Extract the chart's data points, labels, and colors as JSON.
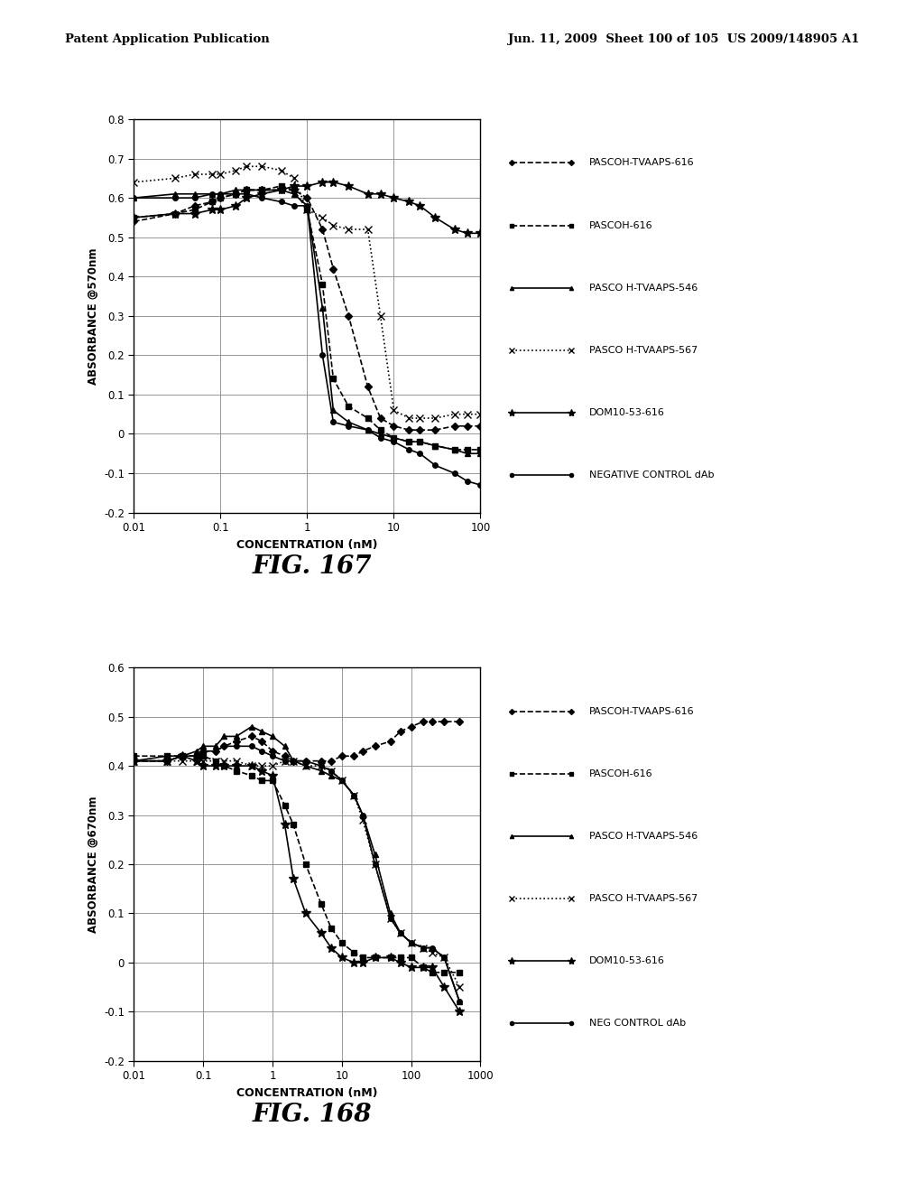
{
  "header_left": "Patent Application Publication",
  "header_right": "Jun. 11, 2009  Sheet 100 of 105  US 2009/148905 A1",
  "fig167_label": "FIG. 167",
  "fig168_label": "FIG. 168",
  "fig1": {
    "ylabel": "ABSORBANCE @570nm",
    "xlabel": "CONCENTRATION (nM)",
    "xlim": [
      0.01,
      100
    ],
    "ylim": [
      -0.2,
      0.8
    ],
    "yticks": [
      -0.2,
      -0.1,
      0,
      0.1,
      0.2,
      0.3,
      0.4,
      0.5,
      0.6,
      0.7,
      0.8
    ],
    "xticks": [
      0.01,
      0.1,
      1,
      10,
      100
    ],
    "xticklabels": [
      "0.01",
      "0.1",
      "1",
      "10",
      "100"
    ],
    "series": [
      {
        "label": "PASCOH-TVAAPS-616",
        "linestyle": "--",
        "marker": "D",
        "markersize": 4,
        "x": [
          0.01,
          0.03,
          0.05,
          0.08,
          0.1,
          0.15,
          0.2,
          0.3,
          0.5,
          0.7,
          1.0,
          1.5,
          2,
          3,
          5,
          7,
          10,
          15,
          20,
          30,
          50,
          70,
          100
        ],
        "y": [
          0.54,
          0.56,
          0.58,
          0.59,
          0.6,
          0.61,
          0.62,
          0.62,
          0.62,
          0.62,
          0.6,
          0.52,
          0.42,
          0.3,
          0.12,
          0.04,
          0.02,
          0.01,
          0.01,
          0.01,
          0.02,
          0.02,
          0.02
        ]
      },
      {
        "label": "PASCOH-616",
        "linestyle": "--",
        "marker": "s",
        "markersize": 4,
        "x": [
          0.01,
          0.03,
          0.05,
          0.08,
          0.1,
          0.15,
          0.2,
          0.3,
          0.5,
          0.7,
          1.0,
          1.5,
          2,
          3,
          5,
          7,
          10,
          15,
          20,
          30,
          50,
          70,
          100
        ],
        "y": [
          0.55,
          0.56,
          0.57,
          0.59,
          0.6,
          0.61,
          0.62,
          0.62,
          0.63,
          0.62,
          0.57,
          0.38,
          0.14,
          0.07,
          0.04,
          0.01,
          -0.01,
          -0.02,
          -0.02,
          -0.03,
          -0.04,
          -0.04,
          -0.04
        ]
      },
      {
        "label": "PASCO H-TVAAPS-546",
        "linestyle": "-",
        "marker": "^",
        "markersize": 4,
        "x": [
          0.01,
          0.03,
          0.05,
          0.08,
          0.1,
          0.15,
          0.2,
          0.3,
          0.5,
          0.7,
          1.0,
          1.5,
          2,
          3,
          5,
          7,
          10,
          15,
          20,
          30,
          50,
          70,
          100
        ],
        "y": [
          0.6,
          0.61,
          0.61,
          0.61,
          0.61,
          0.62,
          0.62,
          0.62,
          0.62,
          0.61,
          0.58,
          0.32,
          0.06,
          0.03,
          0.01,
          0.0,
          -0.01,
          -0.02,
          -0.02,
          -0.03,
          -0.04,
          -0.05,
          -0.05
        ]
      },
      {
        "label": "PASCO H-TVAAPS-567",
        "linestyle": ":",
        "marker": "x",
        "markersize": 6,
        "x": [
          0.01,
          0.03,
          0.05,
          0.08,
          0.1,
          0.15,
          0.2,
          0.3,
          0.5,
          0.7,
          1.0,
          1.5,
          2,
          3,
          5,
          7,
          10,
          15,
          20,
          30,
          50,
          70,
          100
        ],
        "y": [
          0.64,
          0.65,
          0.66,
          0.66,
          0.66,
          0.67,
          0.68,
          0.68,
          0.67,
          0.65,
          0.57,
          0.55,
          0.53,
          0.52,
          0.52,
          0.3,
          0.06,
          0.04,
          0.04,
          0.04,
          0.05,
          0.05,
          0.05
        ]
      },
      {
        "label": "DOM10-53-616",
        "linestyle": "-",
        "marker": "*",
        "markersize": 7,
        "x": [
          0.01,
          0.03,
          0.05,
          0.08,
          0.1,
          0.15,
          0.2,
          0.3,
          0.5,
          0.7,
          1.0,
          1.5,
          2,
          3,
          5,
          7,
          10,
          15,
          20,
          30,
          50,
          70,
          100
        ],
        "y": [
          0.55,
          0.56,
          0.56,
          0.57,
          0.57,
          0.58,
          0.6,
          0.61,
          0.62,
          0.63,
          0.63,
          0.64,
          0.64,
          0.63,
          0.61,
          0.61,
          0.6,
          0.59,
          0.58,
          0.55,
          0.52,
          0.51,
          0.51
        ]
      },
      {
        "label": "NEGATIVE CONTROL dAb",
        "linestyle": "-",
        "marker": "o",
        "markersize": 4,
        "x": [
          0.01,
          0.03,
          0.05,
          0.08,
          0.1,
          0.15,
          0.2,
          0.3,
          0.5,
          0.7,
          1.0,
          1.5,
          2,
          3,
          5,
          7,
          10,
          15,
          20,
          30,
          50,
          70,
          100
        ],
        "y": [
          0.6,
          0.6,
          0.6,
          0.61,
          0.61,
          0.61,
          0.61,
          0.6,
          0.59,
          0.58,
          0.58,
          0.2,
          0.03,
          0.02,
          0.01,
          -0.01,
          -0.02,
          -0.04,
          -0.05,
          -0.08,
          -0.1,
          -0.12,
          -0.13
        ]
      }
    ]
  },
  "fig2": {
    "ylabel": "ABSORBANCE @670nm",
    "xlabel": "CONCENTRATION (nM)",
    "xlim": [
      0.01,
      1000
    ],
    "ylim": [
      -0.2,
      0.6
    ],
    "yticks": [
      -0.2,
      -0.1,
      0,
      0.1,
      0.2,
      0.3,
      0.4,
      0.5,
      0.6
    ],
    "xticks": [
      0.01,
      0.1,
      1,
      10,
      100,
      1000
    ],
    "xticklabels": [
      "0.01",
      "0.1",
      "1",
      "10",
      "100",
      "1000"
    ],
    "series": [
      {
        "label": "PASCOH-TVAAPS-616",
        "linestyle": "--",
        "marker": "D",
        "markersize": 4,
        "x": [
          0.01,
          0.03,
          0.05,
          0.08,
          0.1,
          0.15,
          0.2,
          0.3,
          0.5,
          0.7,
          1.0,
          1.5,
          2,
          3,
          5,
          7,
          10,
          15,
          20,
          30,
          50,
          70,
          100,
          150,
          200,
          300,
          500
        ],
        "y": [
          0.41,
          0.41,
          0.42,
          0.42,
          0.43,
          0.43,
          0.44,
          0.45,
          0.46,
          0.45,
          0.43,
          0.42,
          0.41,
          0.41,
          0.41,
          0.41,
          0.42,
          0.42,
          0.43,
          0.44,
          0.45,
          0.47,
          0.48,
          0.49,
          0.49,
          0.49,
          0.49
        ]
      },
      {
        "label": "PASCOH-616",
        "linestyle": "--",
        "marker": "s",
        "markersize": 4,
        "x": [
          0.01,
          0.03,
          0.05,
          0.08,
          0.1,
          0.15,
          0.2,
          0.3,
          0.5,
          0.7,
          1.0,
          1.5,
          2,
          3,
          5,
          7,
          10,
          15,
          20,
          30,
          50,
          70,
          100,
          150,
          200,
          300,
          500
        ],
        "y": [
          0.42,
          0.42,
          0.42,
          0.42,
          0.42,
          0.41,
          0.4,
          0.39,
          0.38,
          0.37,
          0.37,
          0.32,
          0.28,
          0.2,
          0.12,
          0.07,
          0.04,
          0.02,
          0.01,
          0.01,
          0.01,
          0.01,
          0.01,
          -0.01,
          -0.02,
          -0.02,
          -0.02
        ]
      },
      {
        "label": "PASCO H-TVAAPS-546",
        "linestyle": "-",
        "marker": "^",
        "markersize": 4,
        "x": [
          0.01,
          0.03,
          0.05,
          0.08,
          0.1,
          0.15,
          0.2,
          0.3,
          0.5,
          0.7,
          1.0,
          1.5,
          2,
          3,
          5,
          7,
          10,
          15,
          20,
          30,
          50,
          70,
          100,
          150,
          200,
          300,
          500
        ],
        "y": [
          0.41,
          0.42,
          0.42,
          0.43,
          0.44,
          0.44,
          0.46,
          0.46,
          0.48,
          0.47,
          0.46,
          0.44,
          0.41,
          0.4,
          0.39,
          0.38,
          0.37,
          0.34,
          0.3,
          0.22,
          0.1,
          0.06,
          0.04,
          0.03,
          0.03,
          0.01,
          -0.08
        ]
      },
      {
        "label": "PASCO H-TVAAPS-567",
        "linestyle": ":",
        "marker": "x",
        "markersize": 6,
        "x": [
          0.01,
          0.03,
          0.05,
          0.08,
          0.1,
          0.15,
          0.2,
          0.3,
          0.5,
          0.7,
          1.0,
          1.5,
          2,
          3,
          5,
          7,
          10,
          15,
          20,
          30,
          50,
          70,
          100,
          150,
          200,
          300,
          500
        ],
        "y": [
          0.41,
          0.41,
          0.41,
          0.41,
          0.41,
          0.41,
          0.41,
          0.41,
          0.4,
          0.4,
          0.4,
          0.41,
          0.41,
          0.4,
          0.4,
          0.39,
          0.37,
          0.34,
          0.29,
          0.2,
          0.09,
          0.06,
          0.04,
          0.03,
          0.02,
          0.01,
          -0.05
        ]
      },
      {
        "label": "DOM10-53-616",
        "linestyle": "-",
        "marker": "*",
        "markersize": 7,
        "x": [
          0.01,
          0.03,
          0.05,
          0.08,
          0.1,
          0.15,
          0.2,
          0.3,
          0.5,
          0.7,
          1.0,
          1.5,
          2,
          3,
          5,
          7,
          10,
          15,
          20,
          30,
          50,
          70,
          100,
          150,
          200,
          300,
          500
        ],
        "y": [
          0.41,
          0.41,
          0.42,
          0.41,
          0.4,
          0.4,
          0.4,
          0.4,
          0.4,
          0.39,
          0.38,
          0.28,
          0.17,
          0.1,
          0.06,
          0.03,
          0.01,
          0.0,
          0.0,
          0.01,
          0.01,
          0.0,
          -0.01,
          -0.01,
          -0.01,
          -0.05,
          -0.1
        ]
      },
      {
        "label": "NEG CONTROL dAb",
        "linestyle": "-",
        "marker": "o",
        "markersize": 4,
        "x": [
          0.01,
          0.03,
          0.05,
          0.08,
          0.1,
          0.15,
          0.2,
          0.3,
          0.5,
          0.7,
          1.0,
          1.5,
          2,
          3,
          5,
          7,
          10,
          15,
          20,
          30,
          50,
          70,
          100,
          150,
          200,
          300,
          500
        ],
        "y": [
          0.41,
          0.41,
          0.42,
          0.42,
          0.43,
          0.43,
          0.44,
          0.44,
          0.44,
          0.43,
          0.42,
          0.41,
          0.41,
          0.41,
          0.4,
          0.39,
          0.37,
          0.34,
          0.3,
          0.2,
          0.09,
          0.06,
          0.04,
          0.03,
          0.03,
          0.01,
          -0.08
        ]
      }
    ]
  }
}
